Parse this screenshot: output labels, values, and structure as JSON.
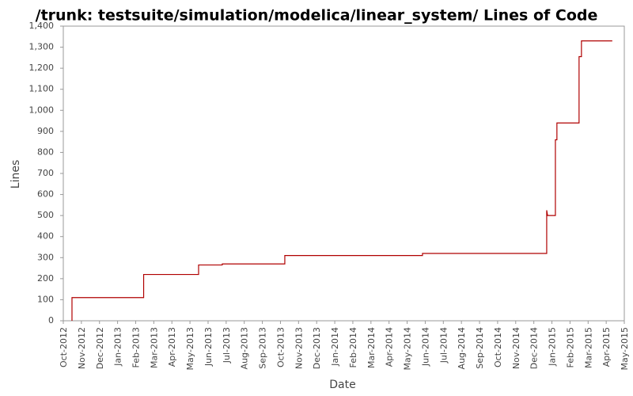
{
  "chart_data": {
    "type": "line",
    "title": "/trunk: testsuite/simulation/modelica/linear_system/ Lines of Code",
    "x_label": "Date",
    "y_label": "Lines",
    "x": [
      2012.79,
      2012.79,
      2013.12,
      2013.12,
      2013.373,
      2013.373,
      2013.482,
      2013.482,
      2013.77,
      2013.77,
      2014.404,
      2014.404,
      2014.976,
      2014.976,
      2014.98,
      2015.016,
      2015.016,
      2015.023,
      2015.023,
      2015.125,
      2015.125,
      2015.136,
      2015.136,
      2015.278
    ],
    "series": [
      {
        "name": "Lines",
        "color": "#b00000",
        "values": [
          0,
          110,
          110,
          220,
          220,
          265,
          265,
          270,
          270,
          310,
          310,
          320,
          320,
          525,
          500,
          500,
          860,
          860,
          940,
          940,
          1255,
          1255,
          1330,
          1330
        ]
      }
    ],
    "xlim": [
      2012.75,
      2015.3333
    ],
    "xticks": [
      {
        "value": 2012.75,
        "label": "Oct-2012"
      },
      {
        "value": 2012.8333,
        "label": "Nov-2012"
      },
      {
        "value": 2012.9167,
        "label": "Dec-2012"
      },
      {
        "value": 2013.0,
        "label": "Jan-2013"
      },
      {
        "value": 2013.0833,
        "label": "Feb-2013"
      },
      {
        "value": 2013.1667,
        "label": "Mar-2013"
      },
      {
        "value": 2013.25,
        "label": "Apr-2013"
      },
      {
        "value": 2013.3333,
        "label": "May-2013"
      },
      {
        "value": 2013.4167,
        "label": "Jun-2013"
      },
      {
        "value": 2013.5,
        "label": "Jul-2013"
      },
      {
        "value": 2013.5833,
        "label": "Aug-2013"
      },
      {
        "value": 2013.6667,
        "label": "Sep-2013"
      },
      {
        "value": 2013.75,
        "label": "Oct-2013"
      },
      {
        "value": 2013.8333,
        "label": "Nov-2013"
      },
      {
        "value": 2013.9167,
        "label": "Dec-2013"
      },
      {
        "value": 2014.0,
        "label": "Jan-2014"
      },
      {
        "value": 2014.0833,
        "label": "Feb-2014"
      },
      {
        "value": 2014.1667,
        "label": "Mar-2014"
      },
      {
        "value": 2014.25,
        "label": "Apr-2014"
      },
      {
        "value": 2014.3333,
        "label": "May-2014"
      },
      {
        "value": 2014.4167,
        "label": "Jun-2014"
      },
      {
        "value": 2014.5,
        "label": "Jul-2014"
      },
      {
        "value": 2014.5833,
        "label": "Aug-2014"
      },
      {
        "value": 2014.6667,
        "label": "Sep-2014"
      },
      {
        "value": 2014.75,
        "label": "Oct-2014"
      },
      {
        "value": 2014.8333,
        "label": "Nov-2014"
      },
      {
        "value": 2014.9167,
        "label": "Dec-2014"
      },
      {
        "value": 2015.0,
        "label": "Jan-2015"
      },
      {
        "value": 2015.0833,
        "label": "Feb-2015"
      },
      {
        "value": 2015.1667,
        "label": "Mar-2015"
      },
      {
        "value": 2015.25,
        "label": "Apr-2015"
      },
      {
        "value": 2015.3333,
        "label": "May-2015"
      }
    ],
    "ylim": [
      0,
      1400
    ],
    "yticks": [
      0,
      100,
      200,
      300,
      400,
      500,
      600,
      700,
      800,
      900,
      {
        "value": 1000,
        "label": "1,000"
      },
      {
        "value": 1100,
        "label": "1,100"
      },
      {
        "value": 1200,
        "label": "1,200"
      },
      {
        "value": 1300,
        "label": "1,300"
      },
      {
        "value": 1400,
        "label": "1,400"
      }
    ],
    "grid": false
  }
}
